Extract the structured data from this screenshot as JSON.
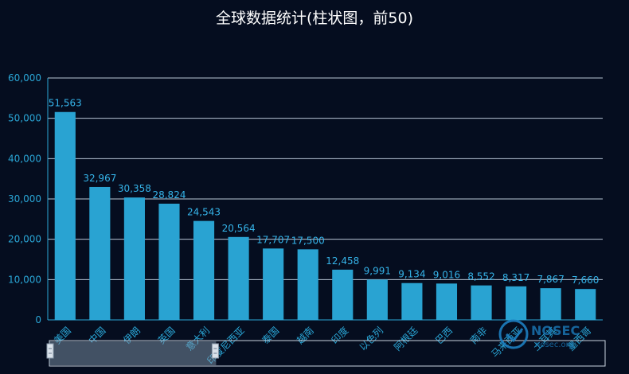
{
  "chart_data": {
    "type": "bar",
    "title": "全球数据统计(柱状图，前50)",
    "categories": [
      "美国",
      "中国",
      "伊朗",
      "英国",
      "意大利",
      "印度尼西亚",
      "泰国",
      "越南",
      "印度",
      "以色列",
      "阿根廷",
      "巴西",
      "南非",
      "马来西亚",
      "土耳其",
      "墨西哥"
    ],
    "values": [
      51563,
      32967,
      30358,
      28824,
      24543,
      20564,
      17707,
      17500,
      12458,
      9991,
      9134,
      9016,
      8552,
      8317,
      7867,
      7660
    ],
    "data_labels": [
      "51,563",
      "32,967",
      "30,358",
      "28,824",
      "24,543",
      "20,564",
      "17,707",
      "17,500",
      "12,458",
      "9,991",
      "9,134",
      "9,016",
      "8,552",
      "8,317",
      "7,867",
      "7,660"
    ],
    "y_ticks": [
      "0",
      "10,000",
      "20,000",
      "30,000",
      "40,000",
      "50,000",
      "60,000"
    ],
    "ylim": [
      0,
      60000
    ],
    "grid": true,
    "bar_color": "#29a3d2",
    "grid_color": "#b9c6d6",
    "label_color": "#2aa6d6",
    "data_zoom": {
      "start": 0,
      "end": 30
    }
  },
  "watermark": {
    "text": "NOSEC",
    "sub": "nosec.org"
  }
}
